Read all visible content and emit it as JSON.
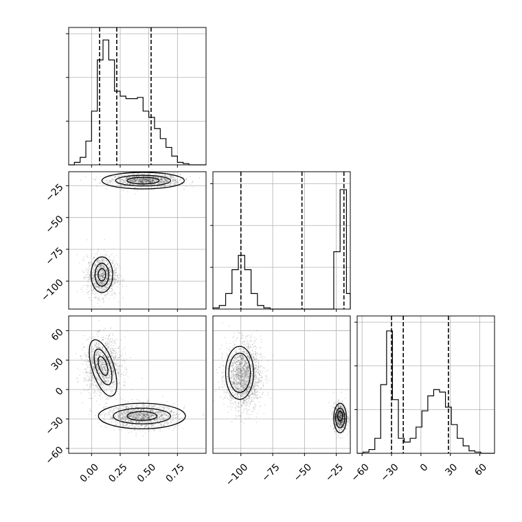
{
  "chart_data": {
    "type": "corner",
    "grid": true,
    "parameters": [
      {
        "range": [
          -0.2,
          1.0
        ],
        "ticks": [
          0.0,
          0.25,
          0.5,
          0.75
        ],
        "tick_labels": [
          "0.00",
          "0.25",
          "0.50",
          "0.75"
        ]
      },
      {
        "range": [
          -122,
          -14
        ],
        "ticks": [
          -100,
          -75,
          -50,
          -25
        ],
        "tick_labels": [
          "−100",
          "−75",
          "−50",
          "−25"
        ]
      },
      {
        "range": [
          -65,
          75
        ],
        "ticks": [
          -60,
          -30,
          0,
          30,
          60
        ],
        "tick_labels": [
          "−60",
          "−30",
          "0",
          "30",
          "60"
        ]
      }
    ],
    "diagonal": [
      {
        "param": 0,
        "type": "histogram",
        "ymax": 1.1,
        "edges": [
          -0.2,
          -0.15,
          -0.1,
          -0.05,
          0.0,
          0.05,
          0.1,
          0.15,
          0.2,
          0.25,
          0.3,
          0.35,
          0.4,
          0.45,
          0.5,
          0.55,
          0.6,
          0.65,
          0.7,
          0.75,
          0.8,
          0.85,
          0.9,
          0.95,
          1.0
        ],
        "counts": [
          0.0,
          0.02,
          0.06,
          0.19,
          0.43,
          0.84,
          1.0,
          0.84,
          0.59,
          0.55,
          0.53,
          0.53,
          0.54,
          0.43,
          0.38,
          0.29,
          0.21,
          0.14,
          0.07,
          0.02,
          0.01,
          0.0,
          0.0,
          0.0
        ],
        "quantiles": [
          0.07,
          0.22,
          0.52
        ]
      },
      {
        "param": 1,
        "type": "histogram",
        "ymax": 1.15,
        "edges": [
          -122,
          -117,
          -112,
          -107,
          -102,
          -97,
          -92,
          -87,
          -82,
          -77,
          -72,
          -67,
          -62,
          -57,
          -52,
          -47,
          -42,
          -37,
          -32,
          -27,
          -22,
          -17,
          -14
        ],
        "counts": [
          0.01,
          0.03,
          0.13,
          0.33,
          0.45,
          0.33,
          0.13,
          0.03,
          0.01,
          0.0,
          0.0,
          0.0,
          0.0,
          0.0,
          0.0,
          0.0,
          0.0,
          0.0,
          0.0,
          0.48,
          1.0,
          0.13
        ],
        "quantiles": [
          -100,
          -52,
          -19
        ]
      },
      {
        "param": 2,
        "type": "histogram",
        "ymax": 1.1,
        "edges": [
          -65,
          -59,
          -53,
          -47,
          -41,
          -35,
          -29,
          -23,
          -17,
          -11,
          -5,
          1,
          7,
          13,
          19,
          25,
          31,
          37,
          43,
          49,
          55,
          61,
          67,
          75
        ],
        "counts": [
          0.0,
          0.01,
          0.03,
          0.12,
          0.55,
          0.98,
          0.43,
          0.12,
          0.09,
          0.12,
          0.21,
          0.34,
          0.46,
          0.51,
          0.49,
          0.37,
          0.23,
          0.12,
          0.06,
          0.02,
          0.01,
          0.0,
          0.0
        ],
        "quantiles": [
          -30,
          -18,
          28
        ]
      }
    ],
    "scatter_panels": [
      {
        "x_param": 0,
        "y_param": 1,
        "modes": [
          {
            "cx": 0.47,
            "cy": -21,
            "sx": 0.15,
            "sy": 2.6,
            "n": 1300
          },
          {
            "cx": 0.09,
            "cy": -96,
            "sx": 0.065,
            "sy": 8,
            "n": 1100
          }
        ],
        "contours": [
          {
            "cx": 0.45,
            "cy": -21,
            "rx": 0.36,
            "ry": 6.5,
            "rot": 0,
            "shade": "#eeeeee"
          },
          {
            "cx": 0.45,
            "cy": -21,
            "rx": 0.24,
            "ry": 4.2,
            "rot": 0,
            "shade": "#c8c8c8"
          },
          {
            "cx": 0.45,
            "cy": -21,
            "rx": 0.14,
            "ry": 2.6,
            "rot": 0,
            "shade": "#8a8a8a"
          },
          {
            "cx": 0.09,
            "cy": -95,
            "rx": 0.095,
            "ry": 14,
            "rot": 0,
            "shade": "#eeeeee"
          },
          {
            "cx": 0.09,
            "cy": -95,
            "rx": 0.06,
            "ry": 9,
            "rot": 0,
            "shade": "#c0c0c0"
          },
          {
            "cx": 0.09,
            "cy": -95,
            "rx": 0.033,
            "ry": 4.8,
            "rot": 0,
            "shade": "#7a7a7a"
          }
        ]
      },
      {
        "x_param": 0,
        "y_param": 2,
        "modes": [
          {
            "cx": 0.1,
            "cy": 24,
            "sx": 0.08,
            "sy": 14,
            "n": 1300
          },
          {
            "cx": 0.44,
            "cy": -27,
            "sx": 0.15,
            "sy": 6,
            "n": 1500
          }
        ],
        "contours": [
          {
            "cx": 0.1,
            "cy": 22,
            "rx": 0.095,
            "ry": 30,
            "rot": -18,
            "shade": "#eeeeee"
          },
          {
            "cx": 0.1,
            "cy": 23,
            "rx": 0.062,
            "ry": 19,
            "rot": -18,
            "shade": "#c0c0c0"
          },
          {
            "cx": 0.1,
            "cy": 24,
            "rx": 0.035,
            "ry": 10,
            "rot": -18,
            "shade": "#6a6a6a"
          },
          {
            "cx": 0.44,
            "cy": -27,
            "rx": 0.38,
            "ry": 13,
            "rot": 0,
            "shade": "#eeeeee"
          },
          {
            "cx": 0.44,
            "cy": -27,
            "rx": 0.25,
            "ry": 8,
            "rot": 0,
            "shade": "#b8b8b8"
          },
          {
            "cx": 0.44,
            "cy": -27,
            "rx": 0.13,
            "ry": 4.5,
            "rot": 0,
            "shade": "#5a5a5a"
          }
        ]
      },
      {
        "x_param": 1,
        "y_param": 2,
        "modes": [
          {
            "cx": -98,
            "cy": 14,
            "sx": 7,
            "sy": 17,
            "n": 1800
          },
          {
            "cx": -22,
            "cy": -28,
            "sx": 2.6,
            "sy": 7,
            "n": 900
          }
        ],
        "contours": [
          {
            "cx": -101,
            "cy": 17,
            "rx": 11,
            "ry": 27,
            "rot": 0,
            "shade": "#eeeeee"
          },
          {
            "cx": -101,
            "cy": 17,
            "rx": 8.5,
            "ry": 20,
            "rot": 0,
            "shade": "#f6f6f6"
          },
          {
            "cx": -22,
            "cy": -29,
            "rx": 5,
            "ry": 15,
            "rot": 0,
            "shade": "#dddddd"
          },
          {
            "cx": -22,
            "cy": -29,
            "rx": 3.6,
            "ry": 10,
            "rot": 0,
            "shade": "#a8a8a8"
          },
          {
            "cx": -22,
            "cy": -27,
            "rx": 2,
            "ry": 5,
            "rot": 0,
            "shade": "#1a1a1a"
          }
        ]
      }
    ]
  }
}
